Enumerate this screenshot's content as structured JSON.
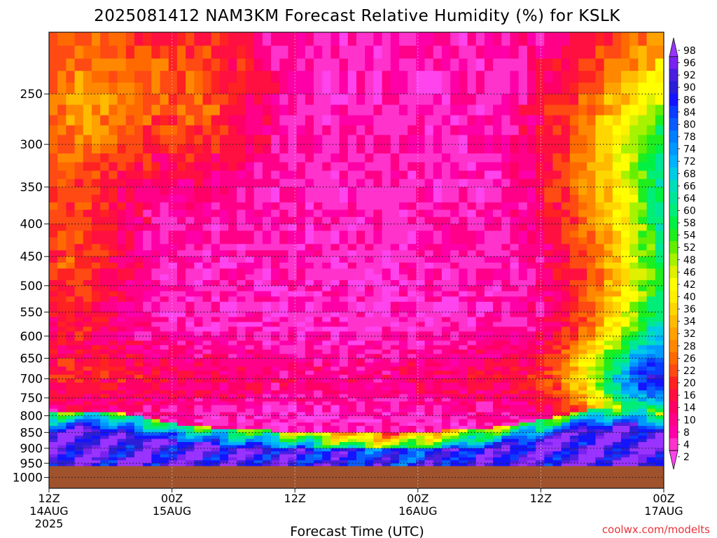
{
  "chart_data": {
    "type": "heatmap",
    "title": "2025081412 NAM3KM Forecast Relative Humidity (%) for KSLK",
    "xlabel": "Forecast Time (UTC)",
    "ylabel": "",
    "credit": "coolwx.com/modelts",
    "y_scale": "pressure (log)",
    "y_ticks": [
      "250",
      "300",
      "350",
      "400",
      "450",
      "500",
      "550",
      "600",
      "650",
      "700",
      "750",
      "800",
      "850",
      "900",
      "950",
      "1000"
    ],
    "y_tick_values": [
      250,
      300,
      350,
      400,
      450,
      500,
      550,
      600,
      650,
      700,
      750,
      800,
      850,
      900,
      950,
      1000
    ],
    "ylim": [
      1040,
      200
    ],
    "x_range_hours": [
      0,
      60
    ],
    "x_ticks": [
      {
        "hour": 0,
        "line1": "12Z",
        "line2": "14AUG",
        "line3": "2025"
      },
      {
        "hour": 12,
        "line1": "00Z",
        "line2": "15AUG",
        "line3": ""
      },
      {
        "hour": 24,
        "line1": "12Z",
        "line2": "",
        "line3": ""
      },
      {
        "hour": 36,
        "line1": "00Z",
        "line2": "16AUG",
        "line3": ""
      },
      {
        "hour": 48,
        "line1": "12Z",
        "line2": "",
        "line3": ""
      },
      {
        "hour": 60,
        "line1": "00Z",
        "line2": "17AUG",
        "line3": ""
      }
    ],
    "grid": true,
    "colorbar": {
      "labels": [
        "98",
        "96",
        "92",
        "90",
        "86",
        "84",
        "80",
        "78",
        "74",
        "72",
        "68",
        "66",
        "64",
        "60",
        "58",
        "54",
        "52",
        "48",
        "46",
        "42",
        "40",
        "36",
        "34",
        "32",
        "28",
        "26",
        "22",
        "20",
        "16",
        "14",
        "10",
        "8",
        "4",
        "2"
      ],
      "colors": [
        "#9933ff",
        "#7a22f0",
        "#4b1ee0",
        "#2a1ed8",
        "#1414ff",
        "#0b3cff",
        "#0a5cff",
        "#007fff",
        "#0099ff",
        "#00b2ff",
        "#00cce6",
        "#00ddbb",
        "#00e699",
        "#00ee77",
        "#00f044",
        "#1eee1e",
        "#66ee00",
        "#a6f200",
        "#dff000",
        "#ffff00",
        "#fff000",
        "#ffd700",
        "#ffbb00",
        "#ffa200",
        "#ff8800",
        "#ff6a00",
        "#ff4a14",
        "#ff2222",
        "#ff1040",
        "#ff0066",
        "#ff0088",
        "#ff00a8",
        "#ff33cc",
        "#ff44ee"
      ]
    },
    "ground_level_hpa": 960,
    "ground_color": "#a0522d",
    "rh_field_note_removed": ""
  }
}
